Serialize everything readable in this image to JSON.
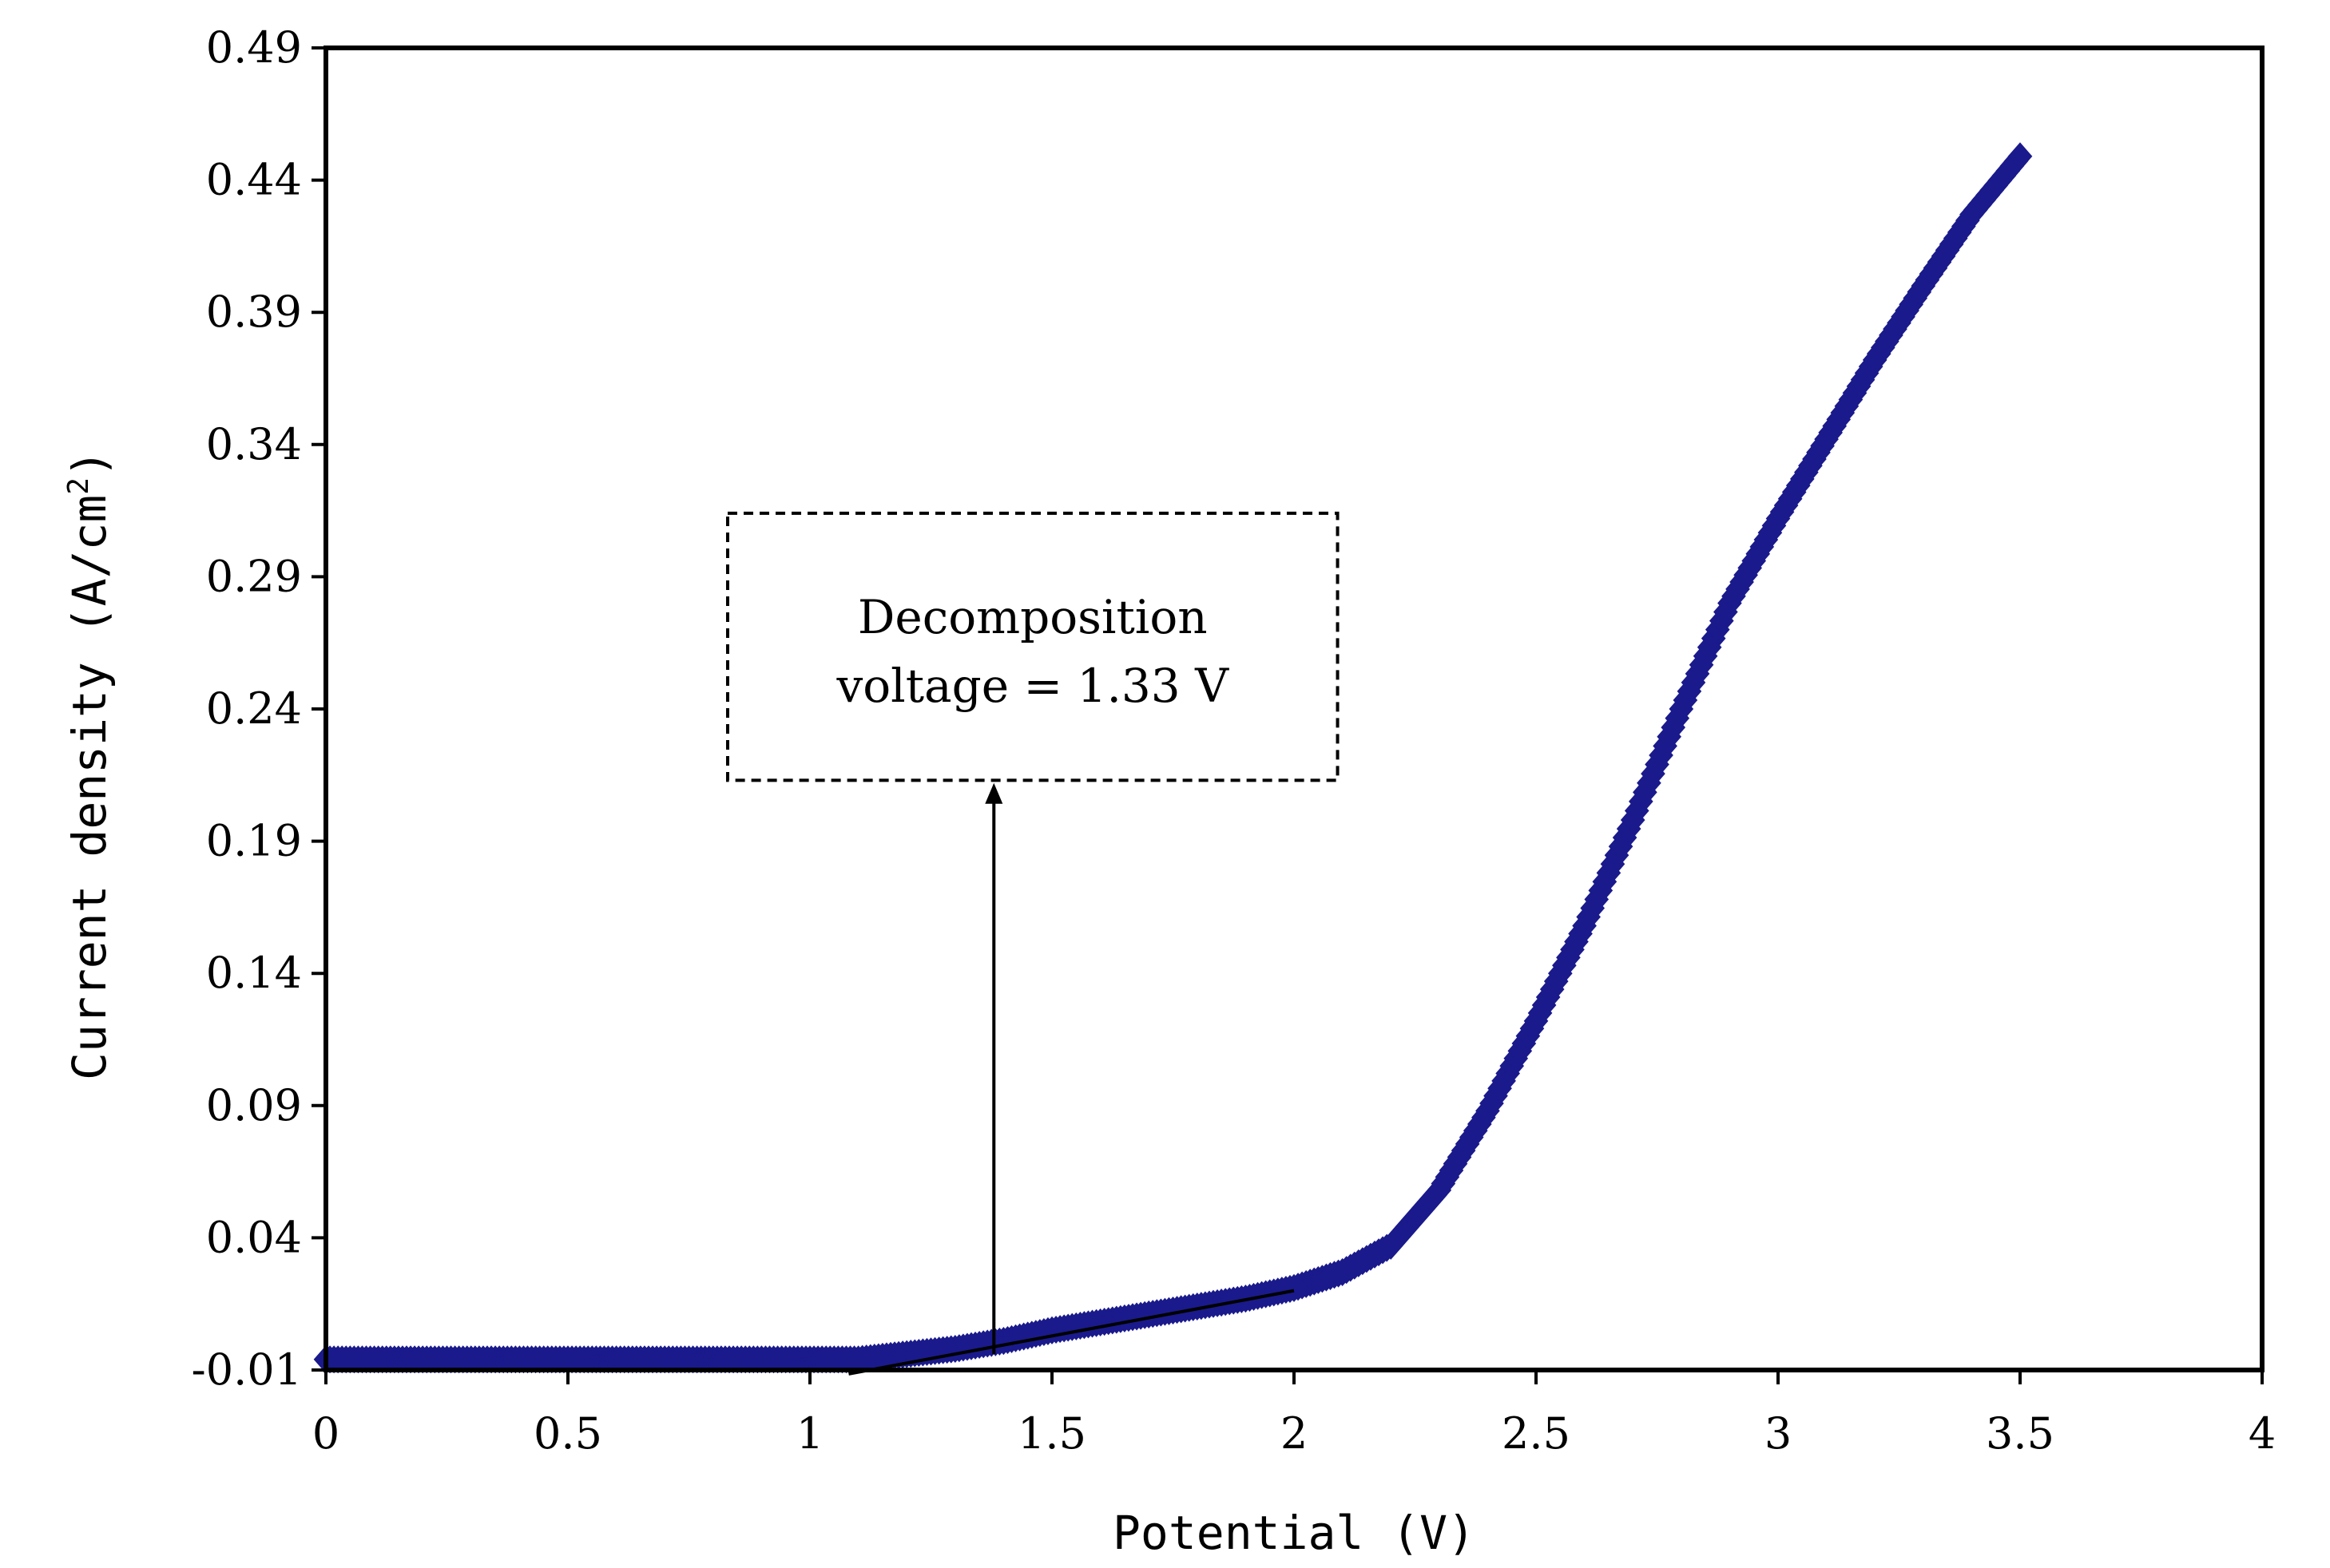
{
  "chart_data": {
    "type": "scatter",
    "xlabel": "Potential (V)",
    "ylabel": {
      "main": "Current density (A/cm",
      "sup": "2",
      "close": ")"
    },
    "xlim": [
      0,
      4
    ],
    "ylim": [
      -0.01,
      0.49
    ],
    "x_ticks": [
      "0",
      "0.5",
      "1",
      "1.5",
      "2",
      "2.5",
      "3",
      "3.5",
      "4"
    ],
    "y_ticks": [
      "-0.01",
      "0.04",
      "0.09",
      "0.14",
      "0.19",
      "0.24",
      "0.29",
      "0.34",
      "0.39",
      "0.44",
      "0.49"
    ],
    "grid": false,
    "marker": "diamond",
    "series_color": "#1a1a8c",
    "series": [
      {
        "points": [
          [
            0.0,
            -0.006
          ],
          [
            0.1,
            -0.006
          ],
          [
            0.2,
            -0.006
          ],
          [
            0.3,
            -0.006
          ],
          [
            0.4,
            -0.006
          ],
          [
            0.5,
            -0.006
          ],
          [
            0.6,
            -0.006
          ],
          [
            0.7,
            -0.006
          ],
          [
            0.8,
            -0.006
          ],
          [
            0.9,
            -0.006
          ],
          [
            1.0,
            -0.006
          ],
          [
            1.1,
            -0.006
          ],
          [
            1.2,
            -0.004
          ],
          [
            1.3,
            -0.002
          ],
          [
            1.4,
            0.001
          ],
          [
            1.5,
            0.005
          ],
          [
            1.6,
            0.008
          ],
          [
            1.7,
            0.011
          ],
          [
            1.8,
            0.014
          ],
          [
            1.9,
            0.017
          ],
          [
            2.0,
            0.021
          ],
          [
            2.1,
            0.027
          ],
          [
            2.2,
            0.037
          ],
          [
            2.3,
            0.058
          ],
          [
            2.4,
            0.088
          ],
          [
            2.5,
            0.122
          ],
          [
            2.6,
            0.158
          ],
          [
            2.7,
            0.198
          ],
          [
            2.8,
            0.24
          ],
          [
            2.9,
            0.28
          ],
          [
            3.0,
            0.312
          ],
          [
            3.1,
            0.342
          ],
          [
            3.2,
            0.372
          ],
          [
            3.3,
            0.4
          ],
          [
            3.4,
            0.427
          ],
          [
            3.5,
            0.449
          ]
        ]
      }
    ],
    "tangent_line": {
      "from": [
        1.08,
        -0.0115
      ],
      "to": [
        2.0,
        0.02
      ]
    },
    "arrow": {
      "from": [
        1.38,
        -0.004
      ],
      "to": [
        1.38,
        0.212
      ]
    },
    "annotation": {
      "lines": [
        "Decomposition",
        "voltage = 1.33 V"
      ],
      "box": {
        "x0": 0.83,
        "x1": 2.09,
        "y0": 0.213,
        "y1": 0.314
      }
    }
  }
}
